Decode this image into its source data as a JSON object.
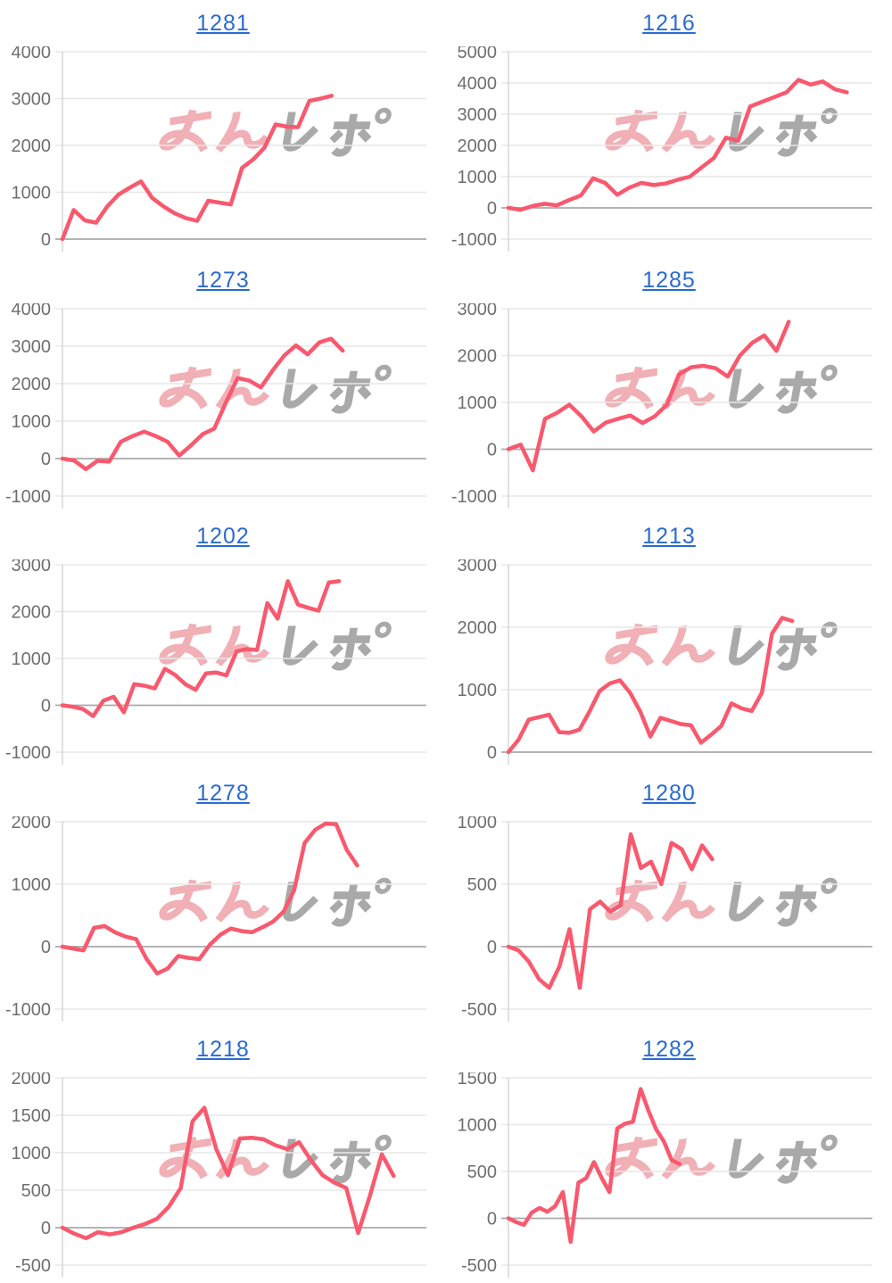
{
  "styles": {
    "line_color": "#f8596e",
    "title_color": "#2b6bd3",
    "axis_label_color": "#6f6f6f",
    "grid_color": "#e7e7e7",
    "zero_line_color": "#aaaaaa",
    "axis_line_color": "#d6d6d6",
    "background": "#ffffff"
  },
  "watermark": {
    "text_pink": "みん",
    "text_gray": "レポ",
    "pink": "#f0b0b6",
    "gray": "#a9a9a9"
  },
  "chart_data": [
    {
      "type": "line",
      "title": "1281",
      "grid": true,
      "legend": "none",
      "ylim": [
        0,
        4000
      ],
      "yticks": [
        0,
        1000,
        2000,
        3000,
        4000
      ],
      "x_span": 0.74,
      "values": [
        0,
        620,
        400,
        350,
        700,
        950,
        1100,
        1230,
        880,
        700,
        550,
        450,
        390,
        820,
        780,
        740,
        1520,
        1700,
        1950,
        2450,
        2400,
        2390,
        2950,
        3000,
        3060
      ]
    },
    {
      "type": "line",
      "title": "1216",
      "grid": true,
      "legend": "none",
      "ylim": [
        -1000,
        5000
      ],
      "yticks": [
        -1000,
        0,
        1000,
        2000,
        3000,
        4000,
        5000
      ],
      "x_span": 0.93,
      "values": [
        0,
        -60,
        60,
        130,
        80,
        250,
        400,
        950,
        800,
        420,
        650,
        800,
        730,
        780,
        900,
        1000,
        1300,
        1600,
        2250,
        2150,
        3250,
        3400,
        3550,
        3700,
        4100,
        3950,
        4050,
        3800,
        3700
      ]
    },
    {
      "type": "line",
      "title": "1273",
      "grid": true,
      "legend": "none",
      "ylim": [
        -1000,
        4000
      ],
      "yticks": [
        -1000,
        0,
        1000,
        2000,
        3000,
        4000
      ],
      "x_span": 0.77,
      "values": [
        0,
        -50,
        -280,
        -60,
        -80,
        450,
        600,
        720,
        600,
        450,
        80,
        350,
        650,
        800,
        1500,
        2150,
        2080,
        1900,
        2350,
        2750,
        3020,
        2780,
        3100,
        3200,
        2880
      ]
    },
    {
      "type": "line",
      "title": "1285",
      "grid": true,
      "legend": "none",
      "ylim": [
        -1000,
        3000
      ],
      "yticks": [
        -1000,
        0,
        1000,
        2000,
        3000
      ],
      "x_span": 0.77,
      "values": [
        0,
        100,
        -450,
        650,
        780,
        950,
        700,
        380,
        570,
        650,
        720,
        560,
        700,
        950,
        1600,
        1750,
        1780,
        1730,
        1550,
        2000,
        2270,
        2430,
        2100,
        2720
      ]
    },
    {
      "type": "line",
      "title": "1202",
      "grid": true,
      "legend": "none",
      "ylim": [
        -1000,
        3000
      ],
      "yticks": [
        -1000,
        0,
        1000,
        2000,
        3000
      ],
      "x_span": 0.76,
      "values": [
        0,
        -30,
        -80,
        -230,
        100,
        180,
        -150,
        450,
        420,
        360,
        780,
        650,
        450,
        330,
        680,
        700,
        640,
        1150,
        1200,
        1180,
        2180,
        1850,
        2650,
        2150,
        2080,
        2020,
        2620,
        2650
      ]
    },
    {
      "type": "line",
      "title": "1213",
      "grid": true,
      "legend": "none",
      "ylim": [
        0,
        3000
      ],
      "yticks": [
        0,
        1000,
        2000,
        3000
      ],
      "x_span": 0.78,
      "values": [
        0,
        200,
        520,
        560,
        600,
        320,
        310,
        360,
        650,
        980,
        1100,
        1150,
        950,
        650,
        250,
        550,
        500,
        450,
        430,
        150,
        280,
        420,
        780,
        700,
        660,
        950,
        1900,
        2150,
        2100
      ]
    },
    {
      "type": "line",
      "title": "1278",
      "grid": true,
      "legend": "none",
      "ylim": [
        -1000,
        2000
      ],
      "yticks": [
        -1000,
        0,
        1000,
        2000
      ],
      "x_span": 0.81,
      "values": [
        0,
        -30,
        -60,
        300,
        330,
        230,
        160,
        120,
        -200,
        -430,
        -350,
        -150,
        -180,
        -200,
        30,
        190,
        290,
        250,
        230,
        310,
        400,
        560,
        900,
        1660,
        1870,
        1970,
        1960,
        1550,
        1300
      ]
    },
    {
      "type": "line",
      "title": "1280",
      "grid": true,
      "legend": "none",
      "ylim": [
        -500,
        1000
      ],
      "yticks": [
        -500,
        0,
        500,
        1000
      ],
      "x_span": 0.56,
      "values": [
        0,
        -30,
        -120,
        -260,
        -330,
        -160,
        140,
        -330,
        300,
        360,
        280,
        330,
        900,
        630,
        680,
        500,
        830,
        780,
        620,
        810,
        700
      ]
    },
    {
      "type": "line",
      "title": "1218",
      "grid": true,
      "legend": "none",
      "ylim": [
        -500,
        2000
      ],
      "yticks": [
        -500,
        0,
        500,
        1000,
        1500,
        2000
      ],
      "x_span": 0.91,
      "values": [
        0,
        -80,
        -140,
        -60,
        -90,
        -60,
        0,
        50,
        120,
        280,
        530,
        1420,
        1600,
        1050,
        700,
        1190,
        1200,
        1180,
        1100,
        1050,
        1140,
        900,
        700,
        600,
        530,
        -70,
        430,
        980,
        690
      ]
    },
    {
      "type": "line",
      "title": "1282",
      "grid": true,
      "legend": "none",
      "ylim": [
        -500,
        1500
      ],
      "yticks": [
        -500,
        0,
        500,
        1000,
        1500
      ],
      "x_span": 0.47,
      "values": [
        0,
        -40,
        -70,
        60,
        110,
        70,
        130,
        280,
        -250,
        380,
        430,
        600,
        430,
        280,
        960,
        1010,
        1030,
        1380,
        1150,
        950,
        820,
        620,
        580
      ]
    }
  ]
}
